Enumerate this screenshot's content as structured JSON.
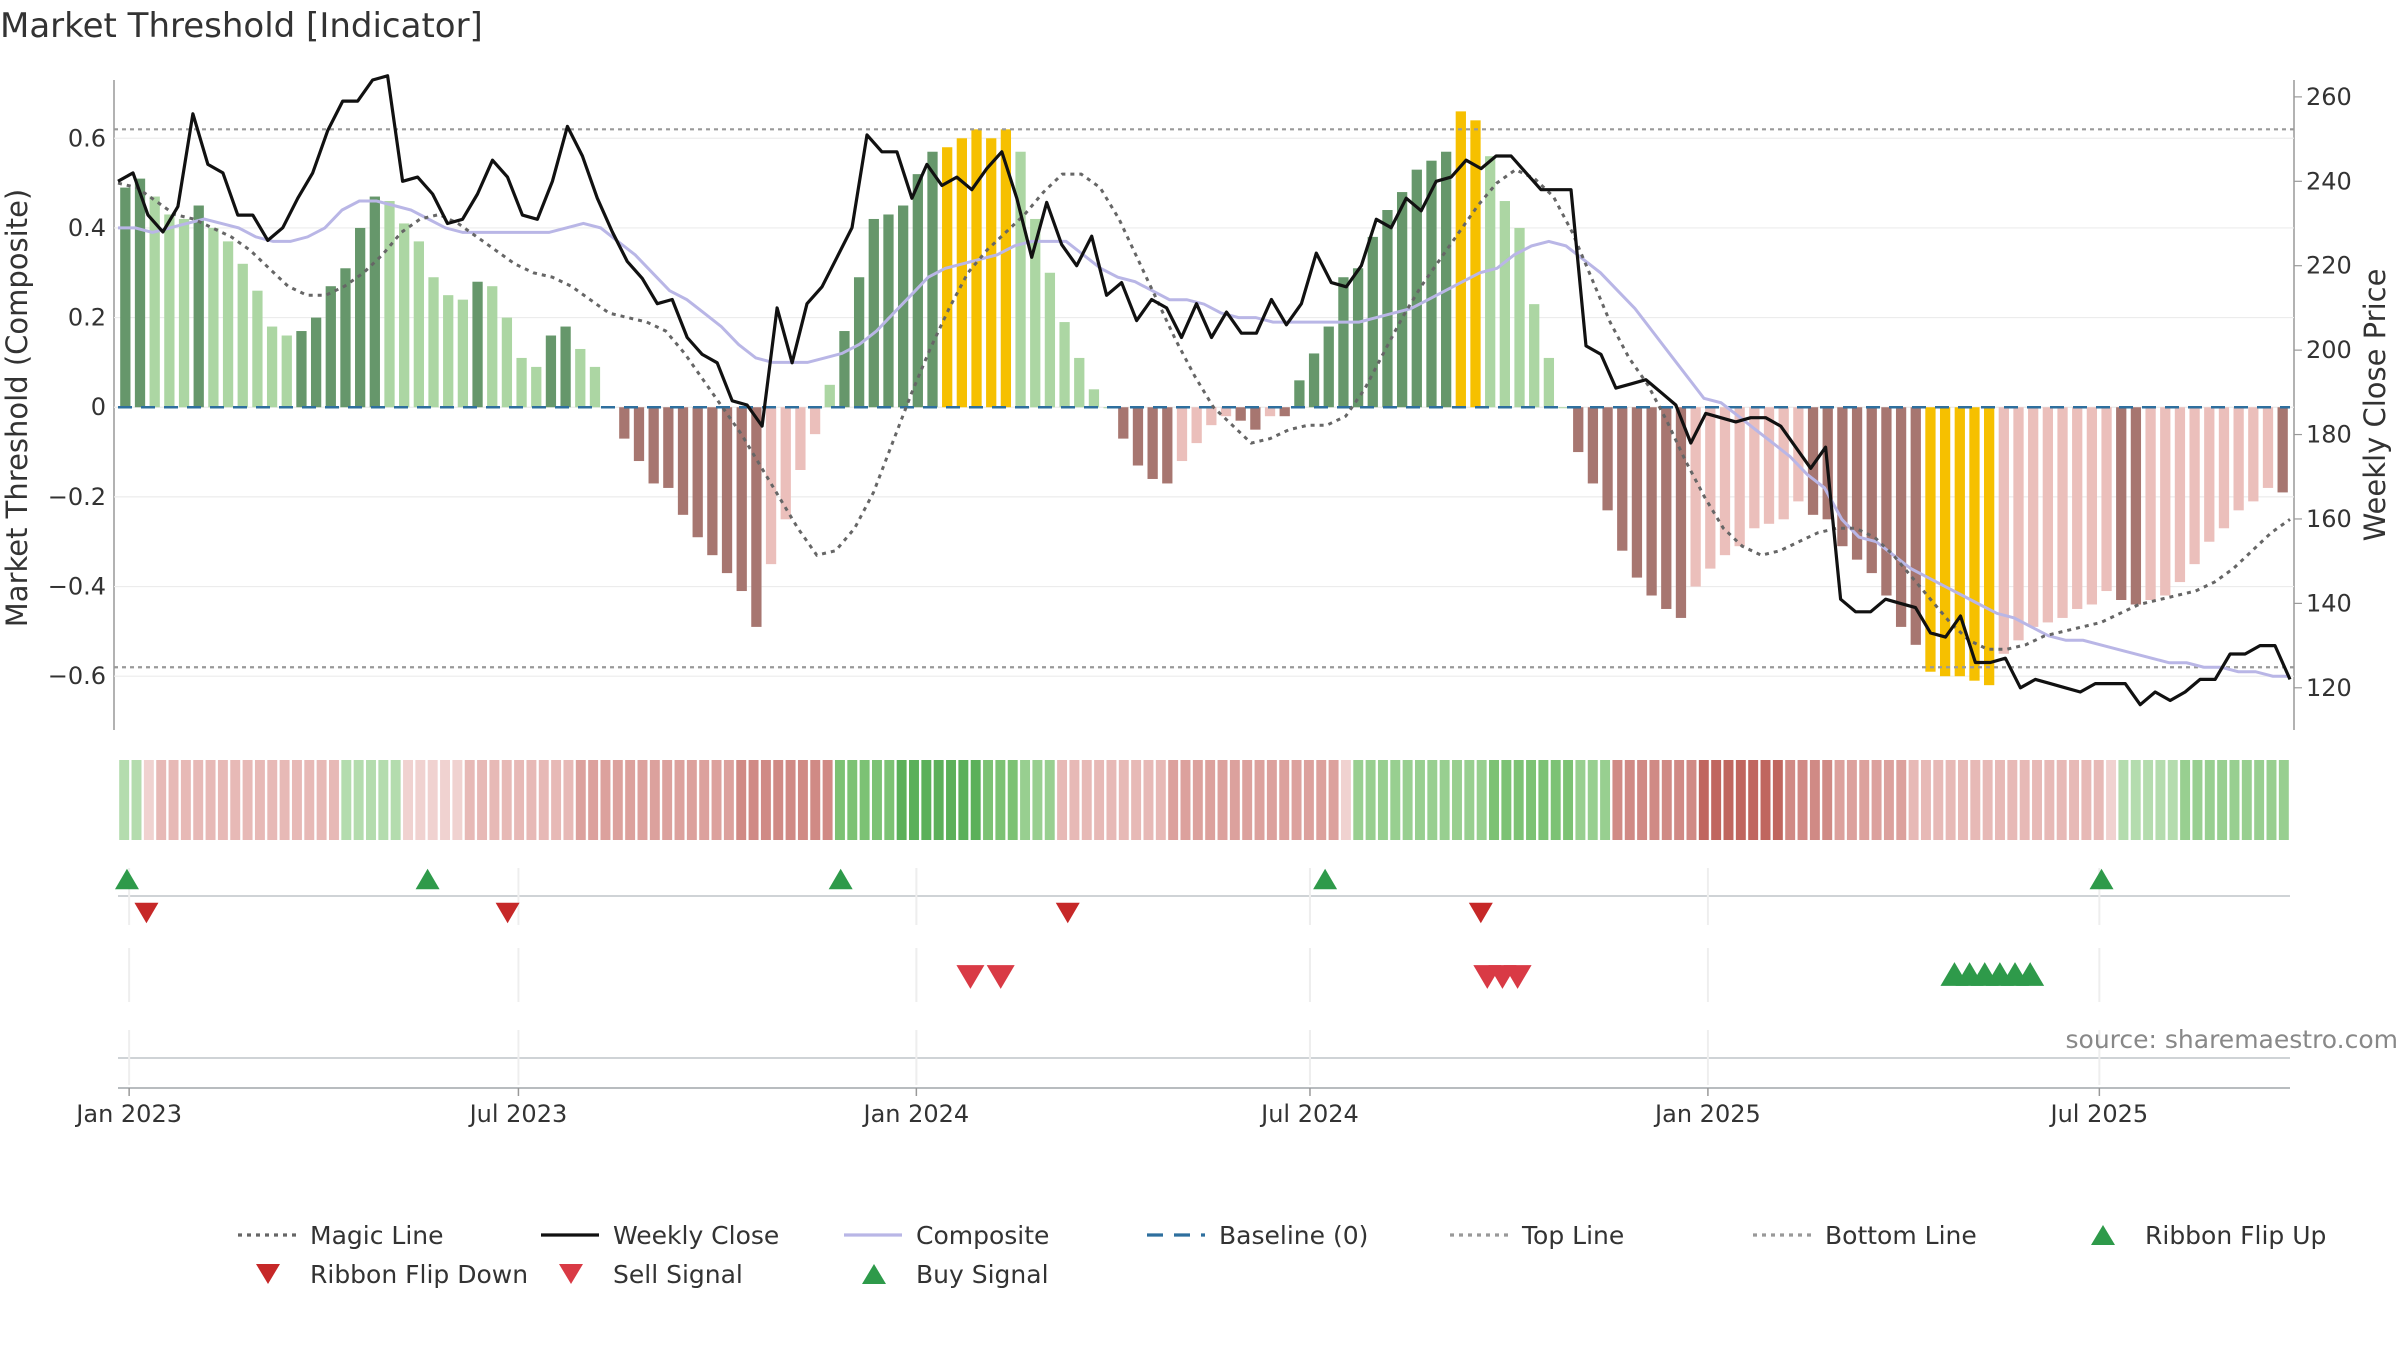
{
  "chart_data": {
    "type": "composite-indicator",
    "title": "Market Threshold [Indicator]",
    "source": "source: sharemaestro.com",
    "ylabel_left": "Market Threshold (Composite)",
    "ylabel_right": "Weekly Close Price",
    "ylim_left": [
      -0.72,
      0.73
    ],
    "ylim_right": [
      110,
      264
    ],
    "yticks_left": [
      0.6,
      0.4,
      0.2,
      0,
      -0.2,
      -0.4,
      -0.6
    ],
    "yticks_left_labels": [
      "0.6",
      "0.4",
      "0.2",
      "0",
      "−0.2",
      "−0.4",
      "−0.6"
    ],
    "yticks_right": [
      260,
      240,
      220,
      200,
      180,
      160,
      140,
      120
    ],
    "yticks_right_labels": [
      "260",
      "240",
      "220",
      "200",
      "180",
      "160",
      "140",
      "120"
    ],
    "top_line": 0.62,
    "bottom_line": -0.58,
    "x_start": "2022-12-26",
    "x_end": "2025-09-29",
    "xticks": [
      {
        "date": "2023-01-02",
        "label": "Jan 2023"
      },
      {
        "date": "2023-07-01",
        "label": "Jul 2023"
      },
      {
        "date": "2024-01-01",
        "label": "Jan 2024"
      },
      {
        "date": "2024-07-01",
        "label": "Jul 2024"
      },
      {
        "date": "2025-01-01",
        "label": "Jan 2025"
      },
      {
        "date": "2025-07-01",
        "label": "Jul 2025"
      }
    ],
    "composite_histogram": [
      0.49,
      0.51,
      0.47,
      0.43,
      0.42,
      0.45,
      0.4,
      0.37,
      0.32,
      0.26,
      0.18,
      0.16,
      0.17,
      0.2,
      0.27,
      0.31,
      0.4,
      0.47,
      0.46,
      0.41,
      0.37,
      0.29,
      0.25,
      0.24,
      0.28,
      0.27,
      0.2,
      0.11,
      0.09,
      0.16,
      0.18,
      0.13,
      0.09,
      0.0,
      -0.07,
      -0.12,
      -0.17,
      -0.18,
      -0.24,
      -0.29,
      -0.33,
      -0.37,
      -0.41,
      -0.49,
      -0.35,
      -0.25,
      -0.14,
      -0.06,
      0.05,
      0.17,
      0.29,
      0.42,
      0.43,
      0.45,
      0.52,
      0.57,
      0.58,
      0.6,
      0.62,
      0.6,
      0.62,
      0.57,
      0.42,
      0.3,
      0.19,
      0.11,
      0.04,
      0.0,
      -0.07,
      -0.13,
      -0.16,
      -0.17,
      -0.12,
      -0.08,
      -0.04,
      -0.02,
      -0.03,
      -0.05,
      -0.02,
      -0.02,
      0.06,
      0.12,
      0.18,
      0.29,
      0.31,
      0.38,
      0.44,
      0.48,
      0.53,
      0.55,
      0.57,
      0.66,
      0.64,
      0.56,
      0.46,
      0.4,
      0.23,
      0.11,
      0.0,
      -0.1,
      -0.17,
      -0.23,
      -0.32,
      -0.38,
      -0.42,
      -0.45,
      -0.47,
      -0.4,
      -0.36,
      -0.33,
      -0.31,
      -0.27,
      -0.26,
      -0.25,
      -0.21,
      -0.24,
      -0.25,
      -0.31,
      -0.34,
      -0.37,
      -0.42,
      -0.49,
      -0.53,
      -0.59,
      -0.6,
      -0.6,
      -0.61,
      -0.62,
      -0.55,
      -0.52,
      -0.49,
      -0.48,
      -0.47,
      -0.45,
      -0.44,
      -0.41,
      -0.43,
      -0.44,
      -0.43,
      -0.42,
      -0.39,
      -0.35,
      -0.3,
      -0.27,
      -0.23,
      -0.21,
      -0.18,
      -0.19
    ],
    "weekly_close": [
      240,
      242,
      232,
      228,
      234,
      256,
      244,
      242,
      232,
      232,
      226,
      229,
      236,
      242,
      252,
      259,
      259,
      264,
      265,
      240,
      241,
      237,
      230,
      231,
      237,
      245,
      241,
      232,
      231,
      240,
      253,
      246,
      236,
      228,
      221,
      217,
      211,
      212,
      203,
      199,
      197,
      188,
      187,
      182,
      210,
      197,
      211,
      215,
      222,
      229,
      251,
      247,
      247,
      236,
      244,
      239,
      241,
      238,
      243,
      247,
      236,
      222,
      235,
      225,
      220,
      227,
      213,
      216,
      207,
      212,
      210,
      203,
      211,
      203,
      209,
      204,
      204,
      212,
      206,
      211,
      223,
      216,
      215,
      220,
      231,
      229,
      236,
      233,
      240,
      241,
      245,
      243,
      246,
      246,
      242,
      238,
      238,
      238,
      201,
      199,
      191,
      192,
      193,
      190,
      187,
      178,
      185,
      184,
      183,
      184,
      184,
      182,
      177,
      172,
      177,
      141,
      138,
      138,
      141,
      140,
      139,
      133,
      132,
      137,
      126,
      126,
      127,
      120,
      122,
      121,
      120,
      119,
      121,
      121,
      121,
      116,
      119,
      117,
      119,
      122,
      122,
      128,
      128,
      130,
      130,
      122
    ],
    "composite_line": [
      0.4,
      0.4,
      0.39,
      0.4,
      0.41,
      0.42,
      0.41,
      0.4,
      0.38,
      0.37,
      0.37,
      0.38,
      0.4,
      0.44,
      0.46,
      0.46,
      0.45,
      0.44,
      0.42,
      0.4,
      0.39,
      0.39,
      0.39,
      0.39,
      0.39,
      0.39,
      0.4,
      0.41,
      0.4,
      0.37,
      0.34,
      0.3,
      0.26,
      0.24,
      0.21,
      0.18,
      0.14,
      0.11,
      0.1,
      0.1,
      0.1,
      0.11,
      0.12,
      0.14,
      0.17,
      0.21,
      0.25,
      0.29,
      0.31,
      0.32,
      0.33,
      0.34,
      0.36,
      0.37,
      0.37,
      0.37,
      0.34,
      0.31,
      0.29,
      0.28,
      0.26,
      0.24,
      0.24,
      0.23,
      0.21,
      0.2,
      0.2,
      0.19,
      0.19,
      0.19,
      0.19,
      0.19,
      0.19,
      0.2,
      0.21,
      0.22,
      0.24,
      0.26,
      0.28,
      0.3,
      0.31,
      0.34,
      0.36,
      0.37,
      0.36,
      0.33,
      0.3,
      0.26,
      0.22,
      0.17,
      0.12,
      0.07,
      0.02,
      0.01,
      -0.02,
      -0.05,
      -0.08,
      -0.11,
      -0.15,
      -0.18,
      -0.25,
      -0.29,
      -0.3,
      -0.33,
      -0.36,
      -0.38,
      -0.4,
      -0.42,
      -0.44,
      -0.46,
      -0.47,
      -0.49,
      -0.51,
      -0.52,
      -0.52,
      -0.53,
      -0.54,
      -0.55,
      -0.56,
      -0.57,
      -0.57,
      -0.58,
      -0.58,
      -0.59,
      -0.59,
      -0.6,
      -0.6
    ],
    "magic_line": [
      0.5,
      0.49,
      0.46,
      0.43,
      0.42,
      0.4,
      0.38,
      0.35,
      0.31,
      0.27,
      0.25,
      0.25,
      0.27,
      0.3,
      0.34,
      0.39,
      0.42,
      0.43,
      0.41,
      0.38,
      0.35,
      0.32,
      0.3,
      0.29,
      0.27,
      0.24,
      0.21,
      0.2,
      0.19,
      0.17,
      0.12,
      0.06,
      0.0,
      -0.06,
      -0.13,
      -0.2,
      -0.27,
      -0.33,
      -0.32,
      -0.27,
      -0.19,
      -0.08,
      0.03,
      0.13,
      0.22,
      0.3,
      0.35,
      0.39,
      0.43,
      0.48,
      0.52,
      0.52,
      0.49,
      0.42,
      0.33,
      0.24,
      0.15,
      0.07,
      0.0,
      -0.04,
      -0.08,
      -0.07,
      -0.05,
      -0.04,
      -0.04,
      -0.02,
      0.04,
      0.12,
      0.2,
      0.27,
      0.33,
      0.39,
      0.45,
      0.5,
      0.53,
      0.51,
      0.47,
      0.39,
      0.29,
      0.19,
      0.11,
      0.05,
      -0.03,
      -0.12,
      -0.2,
      -0.27,
      -0.31,
      -0.33,
      -0.32,
      -0.3,
      -0.28,
      -0.27,
      -0.27,
      -0.29,
      -0.33,
      -0.38,
      -0.43,
      -0.48,
      -0.52,
      -0.54,
      -0.54,
      -0.53,
      -0.51,
      -0.5,
      -0.49,
      -0.48,
      -0.46,
      -0.44,
      -0.43,
      -0.42,
      -0.41,
      -0.39,
      -0.36,
      -0.32,
      -0.28,
      -0.25
    ],
    "ribbon": [
      2,
      2,
      -1,
      -2,
      -2,
      -2,
      -2,
      -2,
      -2,
      -2,
      -2,
      -2,
      -2,
      -2,
      -2,
      -2,
      -2,
      -2,
      2,
      2,
      2,
      2,
      2,
      -1,
      -1,
      -1,
      -1,
      -1,
      -2,
      -2,
      -2,
      -2,
      -2,
      -2,
      -2,
      -2,
      -2,
      -3,
      -3,
      -3,
      -3,
      -3,
      -3,
      -3,
      -3,
      -3,
      -3,
      -3,
      -3,
      -3,
      -4,
      -4,
      -4,
      -4,
      -4,
      -4,
      -4,
      -4,
      4,
      4,
      4,
      4,
      4,
      5,
      5,
      5,
      5,
      5,
      5,
      5,
      4,
      4,
      4,
      3,
      3,
      3,
      -2,
      -2,
      -2,
      -2,
      -2,
      -2,
      -2,
      -2,
      -2,
      -3,
      -3,
      -3,
      -3,
      -3,
      -3,
      -3,
      -3,
      -3,
      -3,
      -3,
      -3,
      -3,
      -3,
      -1,
      3,
      3,
      3,
      3,
      3,
      3,
      3,
      3,
      3,
      3,
      3,
      4,
      4,
      4,
      4,
      4,
      4,
      4,
      3,
      3,
      3,
      -4,
      -4,
      -4,
      -4,
      -4,
      -4,
      -4,
      -5,
      -5,
      -5,
      -5,
      -5,
      -5,
      -5,
      -4,
      -4,
      -4,
      -4,
      -3,
      -3,
      -3,
      -3,
      -3,
      -3,
      -2,
      -2,
      -2,
      -2,
      -2,
      -2,
      -2,
      -2,
      -2,
      -2,
      -2,
      -2,
      -2,
      -2,
      -2,
      -2,
      -1,
      2,
      2,
      2,
      2,
      2,
      3,
      3,
      3,
      3,
      3,
      3,
      3,
      3,
      3
    ],
    "ribbon_flip_up_dates": [
      "2023-01-01",
      "2023-05-20",
      "2023-11-27",
      "2024-07-08",
      "2025-07-02"
    ],
    "ribbon_flip_down_dates": [
      "2023-01-10",
      "2023-06-26",
      "2024-03-11",
      "2024-09-18"
    ],
    "sell_signal_dates": [
      "2024-01-26",
      "2024-02-09",
      "2024-09-21",
      "2024-09-28",
      "2024-10-05"
    ],
    "buy_signal_dates": [
      "2025-04-25",
      "2025-05-02",
      "2025-05-09",
      "2025-05-16",
      "2025-05-23",
      "2025-05-30"
    ],
    "legend": [
      {
        "label": "Magic Line",
        "style": "dotted-line",
        "color": "#666666"
      },
      {
        "label": "Weekly Close",
        "style": "solid-line",
        "color": "#111111"
      },
      {
        "label": "Composite",
        "style": "solid-line",
        "color": "#b9b6e6"
      },
      {
        "label": "Baseline (0)",
        "style": "dashed-line",
        "color": "#2e6f9e"
      },
      {
        "label": "Top Line",
        "style": "dotted-line",
        "color": "#999999"
      },
      {
        "label": "Bottom Line",
        "style": "dotted-line",
        "color": "#999999"
      },
      {
        "label": "Ribbon Flip Up",
        "style": "triangle-up",
        "color": "#2e9a4a"
      },
      {
        "label": "Ribbon Flip Down",
        "style": "triangle-down",
        "color": "#c62828"
      },
      {
        "label": "Sell Signal",
        "style": "triangle-down",
        "color": "#d93a45"
      },
      {
        "label": "Buy Signal",
        "style": "triangle-up",
        "color": "#2e9a4a"
      }
    ],
    "colors": {
      "pos_strong": "#66976b",
      "pos_weak": "#acd6a3",
      "neg_strong": "#a77670",
      "neg_weak": "#ebbfbb",
      "extreme": "#f6c000",
      "magic": "#666666",
      "close": "#111111",
      "composite": "#b9b6e6",
      "baseline": "#2e6f9e",
      "threshold": "#999999",
      "up_marker": "#2e9a4a",
      "flip_down_marker": "#c62828",
      "sell_marker": "#d93a45"
    }
  }
}
